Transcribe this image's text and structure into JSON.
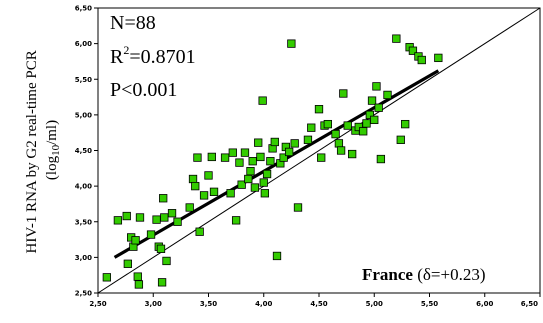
{
  "chart_data": {
    "type": "scatter",
    "ylabel_line1": "HIV-1 RNA by G2 real-time PCR",
    "ylabel_line2_parts": [
      "(log",
      "10",
      "/ml)"
    ],
    "xlim": [
      2.5,
      6.5
    ],
    "ylim": [
      2.5,
      6.5
    ],
    "xticks": [
      "2,50",
      "3,00",
      "3,50",
      "4,00",
      "4,50",
      "5,00",
      "5,50",
      "6,00",
      "6,50"
    ],
    "yticks": [
      "2,50",
      "3,00",
      "3,50",
      "4,00",
      "4,50",
      "5,00",
      "5,50",
      "6,00",
      "6,50"
    ],
    "annotations": {
      "n": "N=88",
      "r2_base": "R",
      "r2_sup": "2",
      "r2_value": "=0.8701",
      "p": "P<0.001",
      "region": "France",
      "delta": " (δ=+0.23)"
    },
    "marker_color": "#33cc00",
    "marker_edge": "#000000",
    "fit_line": {
      "x": [
        2.65,
        5.58
      ],
      "y": [
        3.0,
        5.62
      ]
    },
    "identity_line": {
      "x": [
        2.5,
        6.5
      ],
      "y": [
        2.5,
        6.5
      ]
    },
    "points": [
      [
        2.58,
        2.72
      ],
      [
        2.68,
        3.52
      ],
      [
        2.76,
        3.58
      ],
      [
        2.77,
        2.91
      ],
      [
        2.8,
        3.28
      ],
      [
        2.82,
        3.15
      ],
      [
        2.84,
        3.24
      ],
      [
        2.86,
        2.73
      ],
      [
        2.87,
        2.62
      ],
      [
        2.88,
        3.56
      ],
      [
        2.98,
        3.32
      ],
      [
        3.03,
        3.53
      ],
      [
        3.05,
        3.15
      ],
      [
        3.07,
        3.12
      ],
      [
        3.08,
        2.65
      ],
      [
        3.09,
        3.83
      ],
      [
        3.1,
        3.56
      ],
      [
        3.12,
        2.95
      ],
      [
        3.17,
        3.62
      ],
      [
        3.22,
        3.5
      ],
      [
        3.33,
        3.7
      ],
      [
        3.36,
        4.1
      ],
      [
        3.38,
        4.0
      ],
      [
        3.4,
        4.4
      ],
      [
        3.42,
        3.36
      ],
      [
        3.46,
        3.87
      ],
      [
        3.5,
        4.15
      ],
      [
        3.53,
        4.41
      ],
      [
        3.55,
        3.92
      ],
      [
        3.65,
        4.4
      ],
      [
        3.7,
        3.9
      ],
      [
        3.72,
        4.47
      ],
      [
        3.75,
        3.52
      ],
      [
        3.78,
        4.33
      ],
      [
        3.8,
        4.02
      ],
      [
        3.83,
        4.47
      ],
      [
        3.86,
        4.1
      ],
      [
        3.88,
        4.21
      ],
      [
        3.9,
        4.35
      ],
      [
        3.92,
        3.98
      ],
      [
        3.95,
        4.61
      ],
      [
        3.97,
        4.41
      ],
      [
        3.99,
        5.2
      ],
      [
        4.0,
        4.05
      ],
      [
        4.01,
        3.9
      ],
      [
        4.03,
        4.17
      ],
      [
        4.06,
        4.35
      ],
      [
        4.08,
        4.53
      ],
      [
        4.1,
        4.62
      ],
      [
        4.12,
        3.02
      ],
      [
        4.15,
        4.32
      ],
      [
        4.18,
        4.4
      ],
      [
        4.2,
        4.55
      ],
      [
        4.23,
        4.48
      ],
      [
        4.25,
        6.0
      ],
      [
        4.28,
        4.6
      ],
      [
        4.31,
        3.7
      ],
      [
        4.4,
        4.65
      ],
      [
        4.43,
        4.82
      ],
      [
        4.5,
        5.08
      ],
      [
        4.52,
        4.4
      ],
      [
        4.55,
        4.85
      ],
      [
        4.58,
        4.87
      ],
      [
        4.65,
        4.73
      ],
      [
        4.68,
        4.6
      ],
      [
        4.7,
        4.5
      ],
      [
        4.72,
        5.3
      ],
      [
        4.76,
        4.85
      ],
      [
        4.8,
        4.45
      ],
      [
        4.83,
        4.78
      ],
      [
        4.86,
        4.83
      ],
      [
        4.9,
        4.77
      ],
      [
        4.93,
        4.88
      ],
      [
        4.96,
        5.0
      ],
      [
        4.98,
        5.2
      ],
      [
        5.0,
        4.93
      ],
      [
        5.02,
        5.4
      ],
      [
        5.04,
        5.1
      ],
      [
        5.06,
        4.38
      ],
      [
        5.12,
        5.28
      ],
      [
        5.2,
        6.07
      ],
      [
        5.24,
        4.65
      ],
      [
        5.28,
        4.87
      ],
      [
        5.32,
        5.95
      ],
      [
        5.35,
        5.9
      ],
      [
        5.4,
        5.82
      ],
      [
        5.43,
        5.77
      ],
      [
        5.58,
        5.8
      ]
    ]
  }
}
